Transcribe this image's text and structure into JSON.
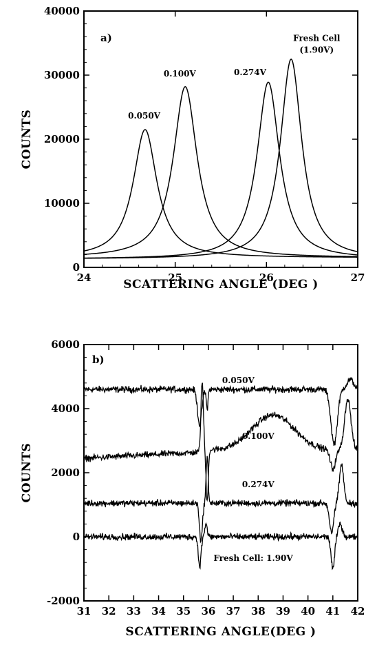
{
  "chart_data": [
    {
      "type": "line",
      "panel_label": "a)",
      "xlabel": "SCATTERING ANGLE (DEG )",
      "ylabel": "COUNTS",
      "xlim": [
        24,
        27
      ],
      "ylim": [
        0,
        40000
      ],
      "xticks": [
        24,
        25,
        26,
        27
      ],
      "yticks": [
        0,
        10000,
        20000,
        30000,
        40000
      ],
      "grid": false,
      "series": [
        {
          "name": "0.050V",
          "peak_x": 24.67,
          "peak_y": 21500,
          "baseline": 1500,
          "width": 0.2
        },
        {
          "name": "0.100V",
          "peak_x": 25.11,
          "peak_y": 28200,
          "baseline": 1500,
          "width": 0.2
        },
        {
          "name": "0.274V",
          "peak_x": 26.02,
          "peak_y": 28900,
          "baseline": 1300,
          "width": 0.19
        },
        {
          "name": "Fresh Cell (1.90V)",
          "peak_x": 26.27,
          "peak_y": 32500,
          "baseline": 1300,
          "width": 0.18
        }
      ],
      "annotations": [
        {
          "text": "0.050V",
          "x": 24.66,
          "y": 23200
        },
        {
          "text": "0.100V",
          "x": 25.05,
          "y": 29800
        },
        {
          "text": "0.274V",
          "x": 25.82,
          "y": 30000
        },
        {
          "text": "Fresh Cell",
          "x": 26.55,
          "y": 35300
        },
        {
          "text": "(1.90V)",
          "x": 26.55,
          "y": 33500
        }
      ]
    },
    {
      "type": "line",
      "panel_label": "b)",
      "xlabel": "SCATTERING ANGLE(DEG )",
      "ylabel": "COUNTS",
      "xlim": [
        31,
        42
      ],
      "ylim": [
        -2000,
        6000
      ],
      "xticks": [
        31,
        32,
        33,
        34,
        35,
        36,
        37,
        38,
        39,
        40,
        41,
        42
      ],
      "yticks": [
        -2000,
        0,
        2000,
        4000,
        6000
      ],
      "grid": false,
      "series": [
        {
          "name": "0.050V",
          "level": 4600,
          "noise": 150
        },
        {
          "name": "0.100V",
          "level_start": 2450,
          "level_35": 2650,
          "bump_peak": 3800,
          "bump_center": 38.6,
          "level_end": 2700,
          "noise": 150
        },
        {
          "name": "0.274V",
          "level": 1050,
          "noise": 150
        },
        {
          "name": "Fresh Cell: 1.90V",
          "level": 0,
          "noise": 150
        }
      ],
      "annotations": [
        {
          "text": "0.050V",
          "x": 37.2,
          "y": 4800
        },
        {
          "text": "0.100V",
          "x": 38.0,
          "y": 3050
        },
        {
          "text": "0.274V",
          "x": 38.0,
          "y": 1550
        },
        {
          "text": "Fresh Cell: 1.90V",
          "x": 37.8,
          "y": -750
        }
      ]
    }
  ]
}
